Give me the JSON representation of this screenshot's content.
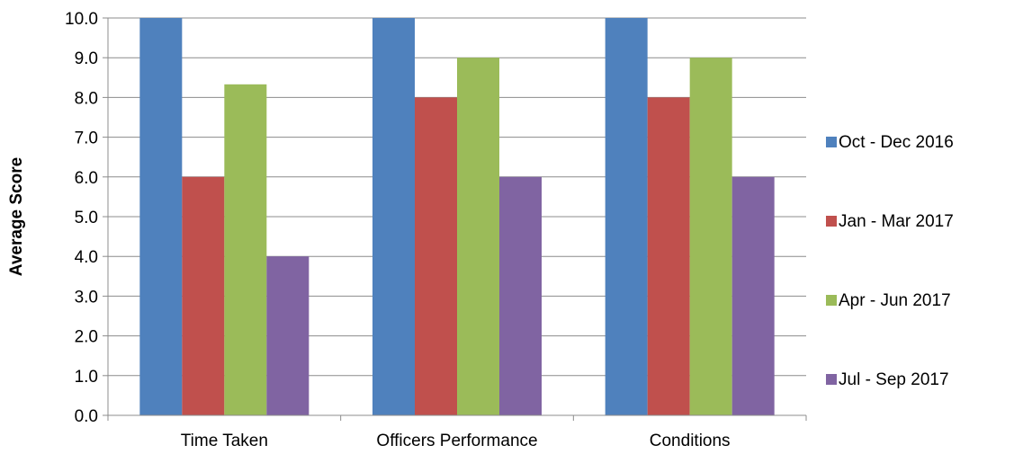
{
  "chart_data": {
    "type": "bar",
    "title": "",
    "xlabel": "",
    "ylabel": "Average Score",
    "ylim": [
      0,
      10
    ],
    "yticks": [
      "0.0",
      "1.0",
      "2.0",
      "3.0",
      "4.0",
      "5.0",
      "6.0",
      "7.0",
      "8.0",
      "9.0",
      "10.0"
    ],
    "categories": [
      "Time Taken",
      "Officers Performance",
      "Conditions"
    ],
    "grid": true,
    "legend_position": "right",
    "series": [
      {
        "name": "Oct - Dec 2016",
        "color": "#4F81BD",
        "values": [
          10.0,
          10.0,
          10.0
        ]
      },
      {
        "name": "Jan - Mar 2017",
        "color": "#C0504D",
        "values": [
          6.0,
          8.0,
          8.0
        ]
      },
      {
        "name": "Apr - Jun 2017",
        "color": "#9BBB59",
        "values": [
          8.33,
          9.0,
          9.0
        ]
      },
      {
        "name": "Jul - Sep 2017",
        "color": "#8064A2",
        "values": [
          4.0,
          6.0,
          6.0
        ]
      }
    ]
  }
}
